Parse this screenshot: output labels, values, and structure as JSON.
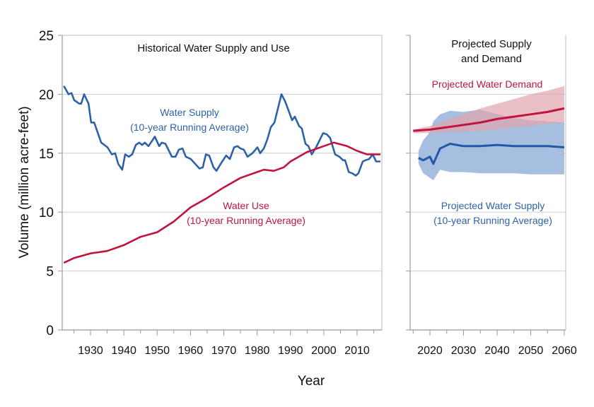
{
  "chart_data": [
    {
      "type": "line",
      "title": "Historical Water Supply and Use",
      "xlabel": "Year",
      "ylabel": "Volume (million acre-feet)",
      "xlim": [
        1922,
        2017
      ],
      "ylim": [
        0,
        25
      ],
      "yticks": [
        "0",
        "5",
        "10",
        "15",
        "20",
        "25"
      ],
      "xticks": [
        "1930",
        "1940",
        "1950",
        "1960",
        "1970",
        "1980",
        "1990",
        "2000",
        "2010"
      ],
      "grid": true,
      "colors": {
        "supply": "#2e62a8",
        "use": "#c0143c"
      },
      "series": [
        {
          "name": "Water Supply (10-year Running Average)",
          "label_lines": [
            "Water Supply",
            "(10-year Running Average)"
          ],
          "x": [
            1922,
            1923.4,
            1924.3,
            1925.1,
            1926.6,
            1927.2,
            1928.1,
            1929.4,
            1930.2,
            1931.1,
            1933.2,
            1935.1,
            1936.4,
            1937.4,
            1938.3,
            1939.5,
            1940.4,
            1941.5,
            1942.5,
            1943.6,
            1944.6,
            1945.5,
            1946.3,
            1947.4,
            1949.3,
            1950.6,
            1951.4,
            1952.5,
            1954.4,
            1955.5,
            1956.5,
            1957.6,
            1958.6,
            1960.1,
            1962.7,
            1963.7,
            1964.6,
            1965.6,
            1966.9,
            1967.8,
            1969.3,
            1970.7,
            1971.8,
            1973.1,
            1974.1,
            1975.0,
            1976.0,
            1977.1,
            1978.6,
            1980.1,
            1980.9,
            1982.0,
            1983.1,
            1984.1,
            1985.2,
            1987.3,
            1988.4,
            1990.5,
            1991.3,
            1992.6,
            1993.4,
            1994.5,
            1995.4,
            1996.4,
            1997.7,
            1999.8,
            2000.9,
            2001.9,
            2003.4,
            2004.7,
            2005.8,
            2006.4,
            2007.5,
            2008.5,
            2009.6,
            2010.4,
            2011.7,
            2012.5,
            2013.6,
            2014.7,
            2015.7,
            2017.0
          ],
          "y": [
            20.7,
            20.0,
            20.1,
            19.5,
            19.2,
            19.2,
            20.0,
            19.2,
            17.6,
            17.6,
            15.9,
            15.5,
            14.9,
            15.0,
            14.1,
            13.6,
            14.9,
            14.7,
            14.9,
            15.7,
            15.9,
            15.7,
            15.9,
            15.6,
            16.4,
            15.6,
            15.9,
            15.8,
            14.7,
            14.7,
            15.3,
            15.4,
            14.7,
            14.5,
            13.7,
            13.8,
            14.9,
            14.8,
            13.8,
            13.5,
            14.2,
            14.8,
            14.5,
            15.5,
            15.6,
            15.4,
            15.3,
            14.7,
            15.0,
            15.5,
            15.0,
            15.4,
            16.2,
            17.2,
            17.6,
            20.0,
            19.4,
            17.8,
            18.1,
            17.3,
            17.1,
            15.8,
            15.6,
            14.9,
            15.5,
            16.7,
            16.6,
            16.3,
            14.9,
            14.7,
            14.4,
            14.4,
            13.4,
            13.3,
            13.1,
            13.3,
            14.3,
            14.4,
            14.5,
            14.9,
            14.3,
            14.3
          ]
        },
        {
          "name": "Water Use (10-year Running Average)",
          "label_lines": [
            "Water Use",
            "(10-year Running Average)"
          ],
          "x": [
            1922,
            1925,
            1930,
            1935,
            1940,
            1945,
            1950,
            1955,
            1960,
            1965,
            1970,
            1975,
            1980,
            1982,
            1985,
            1988,
            1990,
            1995,
            2000,
            2003,
            2007,
            2010,
            2013,
            2017
          ],
          "y": [
            5.7,
            6.1,
            6.5,
            6.7,
            7.2,
            7.9,
            8.3,
            9.2,
            10.4,
            11.2,
            12.1,
            12.9,
            13.4,
            13.6,
            13.5,
            13.8,
            14.3,
            15.1,
            15.6,
            15.9,
            15.6,
            15.2,
            14.9,
            14.9
          ]
        }
      ]
    },
    {
      "type": "area",
      "title": "Projected Supply and Demand",
      "title_lines": [
        "Projected Supply",
        "and Demand"
      ],
      "xlim": [
        2014,
        2061
      ],
      "ylim": [
        0,
        25
      ],
      "xticks": [
        "2020",
        "2030",
        "2040",
        "2050",
        "2060"
      ],
      "grid": true,
      "colors": {
        "supply": "#2258a6",
        "supply_band": "#a6bfe0",
        "demand": "#c0143c",
        "demand_band": "#e3a4ae"
      },
      "series": [
        {
          "name": "Projected Water Demand",
          "x": [
            2015,
            2020,
            2025,
            2030,
            2035,
            2040,
            2045,
            2050,
            2055,
            2060
          ],
          "y": [
            16.9,
            17.0,
            17.2,
            17.4,
            17.6,
            17.9,
            18.1,
            18.3,
            18.5,
            18.8
          ],
          "upper": [
            17.0,
            17.3,
            17.8,
            18.3,
            18.8,
            19.2,
            19.6,
            20.0,
            20.3,
            20.7
          ],
          "lower": [
            16.7,
            16.7,
            16.8,
            16.8,
            16.9,
            17.0,
            17.2,
            17.3,
            17.5,
            17.6
          ]
        },
        {
          "name": "Projected Water Supply (10-year Running Average)",
          "label_lines": [
            "Projected Water Supply",
            "(10-year Running Average)"
          ],
          "x": [
            2016.6,
            2018,
            2020,
            2021,
            2023,
            2026,
            2030,
            2035,
            2040,
            2045,
            2050,
            2055,
            2060
          ],
          "y": [
            14.6,
            14.4,
            14.7,
            14.1,
            15.4,
            15.8,
            15.6,
            15.6,
            15.7,
            15.6,
            15.6,
            15.6,
            15.5
          ],
          "upper": [
            15.2,
            16.1,
            16.8,
            17.7,
            18.3,
            18.6,
            18.5,
            18.7,
            18.3,
            18.0,
            17.8,
            17.7,
            17.6
          ],
          "lower": [
            14.1,
            13.3,
            12.9,
            12.7,
            13.6,
            13.4,
            13.4,
            13.3,
            13.3,
            13.3,
            13.2,
            13.2,
            13.2
          ]
        }
      ]
    }
  ]
}
